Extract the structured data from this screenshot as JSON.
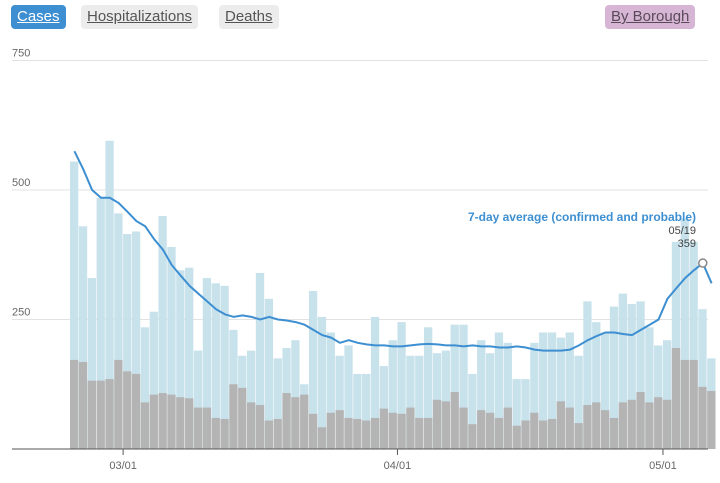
{
  "tabs": [
    {
      "label": "Cases",
      "active": true
    },
    {
      "label": "Hospitalizations",
      "active": false
    },
    {
      "label": "Deaths",
      "active": false
    }
  ],
  "borough_button": {
    "label": "By Borough"
  },
  "colors": {
    "active_tab": "#3d8fd1",
    "borough_button": "#d6b6d4",
    "total_bar": "#c8e2ec",
    "lower_bar": "#b5b4b4",
    "avg_line": "#3d8fd1",
    "highlight": "#efefef"
  },
  "chart_data": {
    "type": "bar",
    "y_ticks": [
      250,
      500,
      750
    ],
    "ylim": [
      0,
      780
    ],
    "x_ticks": [
      {
        "label": "03/01",
        "index": 6
      },
      {
        "label": "04/01",
        "index": 37
      },
      {
        "label": "05/01",
        "index": 67
      }
    ],
    "series": [
      {
        "name": "",
        "values": [
          555,
          430,
          330,
          485,
          595,
          455,
          415,
          420,
          235,
          265,
          450,
          390,
          345,
          350,
          190,
          330,
          320,
          315,
          230,
          180,
          190,
          340,
          290,
          175,
          195,
          210,
          125,
          305,
          255,
          225,
          180,
          200,
          145,
          145,
          255,
          160,
          210,
          245,
          180,
          180,
          235,
          185,
          190,
          240,
          240,
          145,
          210,
          185,
          225,
          205,
          135,
          135,
          205,
          225,
          225,
          215,
          225,
          180,
          285,
          245,
          225,
          275,
          300,
          280,
          285,
          235,
          200,
          210,
          400,
          445,
          400,
          270,
          175
        ]
      },
      {
        "name": "",
        "values": [
          172,
          168,
          132,
          132,
          135,
          172,
          150,
          145,
          90,
          105,
          108,
          105,
          100,
          98,
          80,
          80,
          60,
          58,
          125,
          118,
          90,
          85,
          55,
          58,
          108,
          100,
          105,
          68,
          42,
          70,
          75,
          60,
          58,
          55,
          60,
          78,
          70,
          68,
          80,
          60,
          60,
          95,
          92,
          110,
          80,
          48,
          75,
          70,
          60,
          80,
          45,
          55,
          70,
          55,
          58,
          92,
          80,
          50,
          85,
          90,
          75,
          60,
          90,
          95,
          110,
          90,
          100,
          95,
          195,
          172,
          172,
          120,
          112
        ]
      },
      {
        "name": "7-day average (confirmed and probable)",
        "values": [
          575,
          540,
          500,
          485,
          485,
          475,
          458,
          440,
          430,
          405,
          385,
          355,
          335,
          315,
          300,
          285,
          270,
          260,
          255,
          258,
          255,
          250,
          255,
          250,
          248,
          245,
          240,
          230,
          220,
          215,
          205,
          210,
          205,
          202,
          200,
          200,
          198,
          198,
          200,
          202,
          203,
          202,
          200,
          200,
          198,
          200,
          198,
          198,
          196,
          196,
          198,
          196,
          192,
          190,
          190,
          190,
          192,
          200,
          210,
          218,
          225,
          225,
          222,
          220,
          230,
          240,
          250,
          290,
          310,
          330,
          345,
          359,
          320
        ]
      }
    ],
    "annotation": {
      "series": "7-day average (confirmed and probable)",
      "label": "7-day average (confirmed and probable)",
      "date": "05/19",
      "value": "359"
    }
  }
}
